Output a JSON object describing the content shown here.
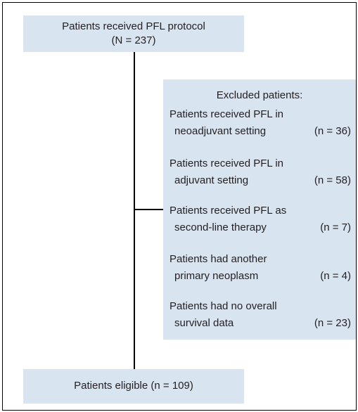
{
  "top_box": {
    "lines": [
      "Patients received PFL protocol",
      "(N = 237)"
    ]
  },
  "excluded": {
    "title": "Excluded patients:",
    "items": [
      {
        "lines": [
          "Patients received PFL in",
          "neoadjuvant setting"
        ],
        "count": "(n = 36)"
      },
      {
        "lines": [
          "Patients received PFL in",
          "adjuvant setting"
        ],
        "count": "(n = 58)"
      },
      {
        "lines": [
          "Patients received PFL as",
          "second-line therapy"
        ],
        "count": "(n = 7)"
      },
      {
        "lines": [
          "Patients had another",
          "primary neoplasm"
        ],
        "count": "(n = 4)"
      },
      {
        "lines": [
          "Patients had no overall",
          "survival data"
        ],
        "count": "(n = 23)"
      }
    ]
  },
  "bottom_box": {
    "text": "Patients eligible (n = 109)"
  }
}
